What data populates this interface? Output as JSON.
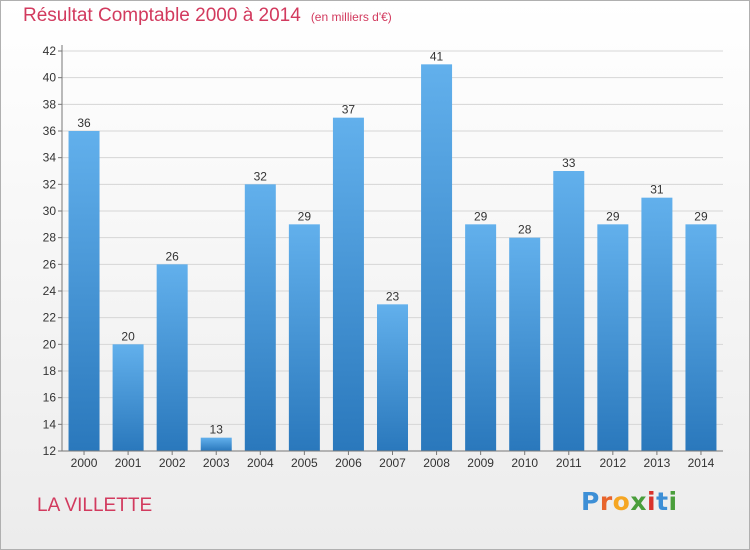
{
  "title": "Résultat Comptable 2000 à 2014",
  "subtitle": "(en milliers d'€)",
  "commune": "LA VILLETTE",
  "logo": {
    "letters": [
      "P",
      "r",
      "o",
      "x",
      "i",
      "t",
      "i"
    ],
    "colors": [
      "#3d8fd6",
      "#e8642c",
      "#f5a623",
      "#4a9e3b",
      "#d9322b",
      "#3d8fd6",
      "#4a9e3b"
    ]
  },
  "colors": {
    "title": "#d23a5e",
    "bar_top": "#62b0ec",
    "bar_bottom": "#2a78bc",
    "grid": "#d6d6d6"
  },
  "chart_data": {
    "type": "bar",
    "title": "Résultat Comptable 2000 à 2014",
    "subtitle": "(en milliers d'€)",
    "xlabel": "",
    "ylabel": "",
    "categories": [
      "2000",
      "2001",
      "2002",
      "2003",
      "2004",
      "2005",
      "2006",
      "2007",
      "2008",
      "2009",
      "2010",
      "2011",
      "2012",
      "2013",
      "2014"
    ],
    "values": [
      36,
      20,
      26,
      13,
      32,
      29,
      37,
      23,
      41,
      29,
      28,
      33,
      29,
      31,
      29
    ],
    "ylim": [
      12,
      42
    ],
    "yticks": [
      12,
      14,
      16,
      18,
      20,
      22,
      24,
      26,
      28,
      30,
      32,
      34,
      36,
      38,
      40,
      42
    ],
    "grid": true,
    "legend": "none"
  }
}
